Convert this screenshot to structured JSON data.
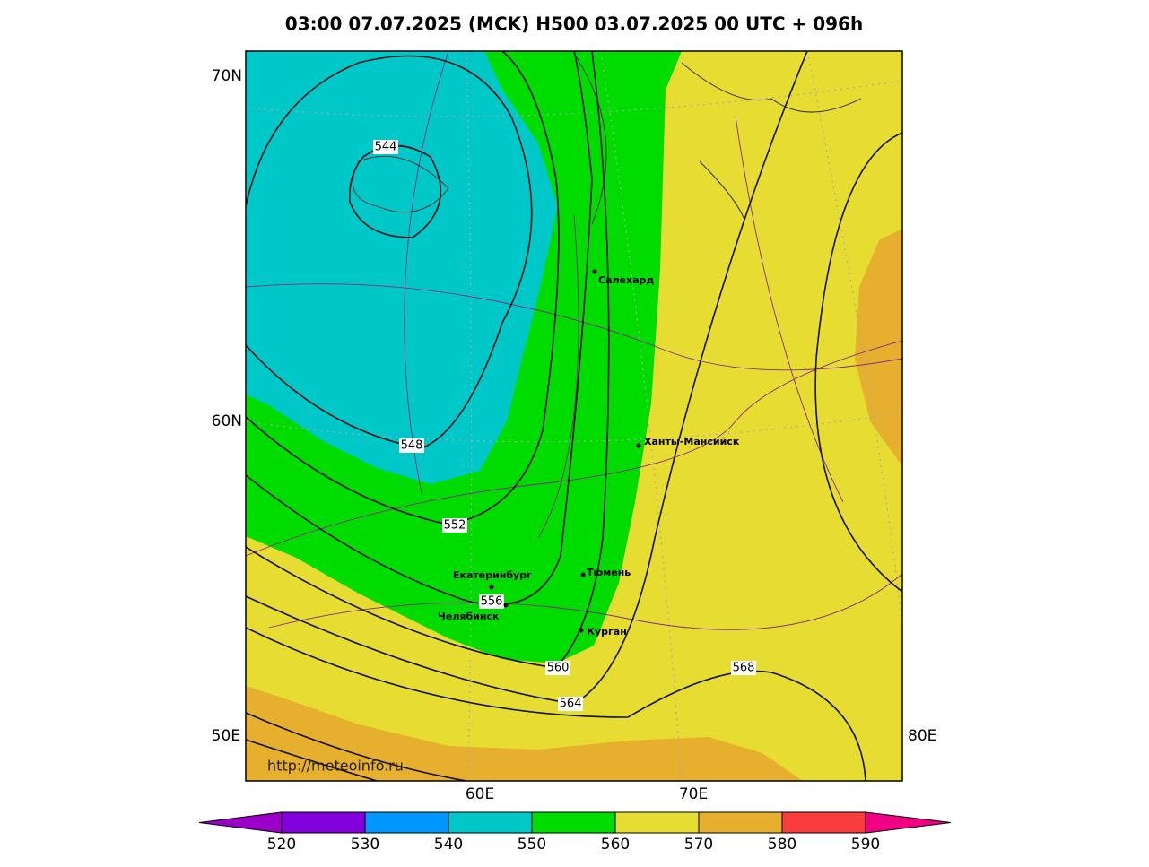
{
  "header": {
    "title": "03:00 07.07.2025 (MCK) H500  03.07.2025 00 UTC + 096h"
  },
  "axes": {
    "lat_labels": [
      "70N",
      "60N"
    ],
    "corner_left": "50E",
    "corner_right": "80E",
    "lon_labels": [
      "60E",
      "70E"
    ]
  },
  "contours": [
    544,
    548,
    552,
    556,
    560,
    564,
    568
  ],
  "cities": [
    "Салехард",
    "Ханты-Мансийск",
    "Екатеринбург",
    "Тюмень",
    "Челябинск",
    "Курган"
  ],
  "credit": "http://meteoinfo.ru",
  "colorbar": {
    "ticks": [
      520,
      530,
      540,
      550,
      560,
      570,
      580,
      590
    ],
    "colors": [
      "#9b00c8",
      "#8200dc",
      "#0096ff",
      "#00c8c8",
      "#00dc00",
      "#e6dc32",
      "#e6af2d",
      "#fa3c3c",
      "#f00082"
    ]
  }
}
